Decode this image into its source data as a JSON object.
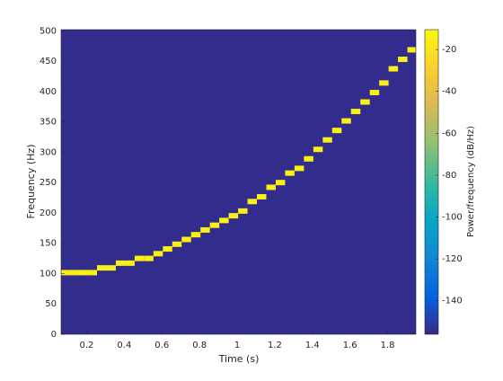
{
  "chart_data": {
    "type": "heatmap",
    "x_label": "Time (s)",
    "y_label": "Frequency (Hz)",
    "colorbar_label": "Power/frequency (dB/Hz)",
    "x": [
      0.08,
      0.13,
      0.18,
      0.23,
      0.28,
      0.33,
      0.38,
      0.43,
      0.48,
      0.53,
      0.58,
      0.63,
      0.68,
      0.73,
      0.78,
      0.83,
      0.88,
      0.93,
      0.98,
      1.03,
      1.08,
      1.13,
      1.18,
      1.23,
      1.28,
      1.33,
      1.38,
      1.43,
      1.48,
      1.53,
      1.58,
      1.63,
      1.68,
      1.73,
      1.78,
      1.83,
      1.88,
      1.93
    ],
    "y": [
      101.6,
      101.6,
      101.6,
      101.6,
      109.4,
      109.4,
      117.2,
      117.2,
      125.0,
      125.0,
      132.8,
      140.6,
      148.4,
      156.25,
      164.1,
      171.9,
      179.7,
      187.5,
      195.3,
      203.1,
      218.75,
      226.6,
      242.2,
      250.0,
      265.6,
      273.4,
      289.1,
      304.7,
      320.3,
      335.9,
      351.6,
      367.2,
      382.8,
      398.4,
      414.1,
      437.5,
      453.1,
      468.75
    ],
    "values": [
      -15,
      -15,
      -15,
      -15,
      -15,
      -15,
      -15,
      -15,
      -15,
      -15,
      -15,
      -15,
      -15,
      -15,
      -15,
      -15,
      -15,
      -15,
      -15,
      -15,
      -15,
      -15,
      -15,
      -15,
      -15,
      -15,
      -15,
      -15,
      -15,
      -15,
      -15,
      -15,
      -15,
      -15,
      -15,
      -15,
      -15,
      -15
    ],
    "background": -155,
    "xlim": [
      0.064,
      1.95
    ],
    "xticks": [
      0.2,
      0.4,
      0.6,
      0.8,
      1,
      1.2,
      1.4,
      1.6,
      1.8
    ],
    "ylim": [
      0,
      502
    ],
    "yticks": [
      0,
      50,
      100,
      150,
      200,
      250,
      300,
      350,
      400,
      450,
      500
    ],
    "clim": [
      -156,
      -10.5
    ],
    "cticks": [
      -140,
      -120,
      -100,
      -80,
      -60,
      -40,
      -20
    ],
    "colormap": "parula"
  }
}
